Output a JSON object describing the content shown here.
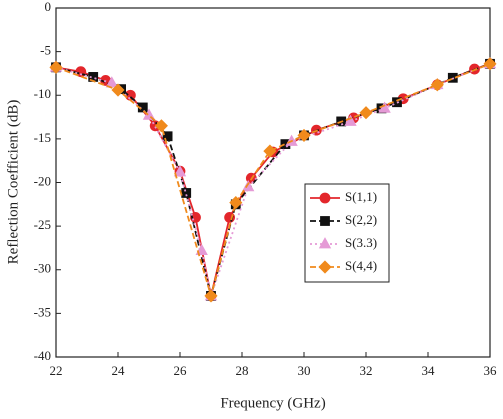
{
  "chart_data": {
    "type": "line",
    "x_label": "Frequency (GHz)",
    "y_label": "Reflection Coefficient (dB)",
    "xlim": [
      22,
      36
    ],
    "xticks": [
      22,
      24,
      26,
      28,
      30,
      32,
      34,
      36
    ],
    "ylim": [
      -40,
      0
    ],
    "yticks": [
      0,
      -5,
      -10,
      -15,
      -20,
      -25,
      -30,
      -35,
      -40
    ],
    "grid": false,
    "legend": "right",
    "series": [
      {
        "name": "S(1,1)",
        "color": "#e3262b",
        "marker": "circle",
        "dash": "solid",
        "x": [
          22,
          22.8,
          23.6,
          24.4,
          25.2,
          26.0,
          26.5,
          27.0,
          27.6,
          28.3,
          29.0,
          30.4,
          31.6,
          33.2,
          34.3,
          35.5,
          36
        ],
        "values": [
          -6.8,
          -7.3,
          -8.3,
          -10.0,
          -13.5,
          -18.7,
          -24.0,
          -33.0,
          -24.0,
          -19.5,
          -16.5,
          -14.0,
          -12.6,
          -10.4,
          -8.8,
          -7.0,
          -6.4
        ]
      },
      {
        "name": "S(2,2)",
        "color": "#111111",
        "marker": "square",
        "dash": "dashed",
        "x": [
          22,
          23.2,
          24.1,
          24.8,
          25.6,
          26.2,
          27.0,
          27.8,
          29.4,
          30.0,
          31.2,
          32.5,
          33.0,
          34.8,
          36
        ],
        "values": [
          -6.8,
          -7.9,
          -9.3,
          -11.4,
          -14.7,
          -21.2,
          -33.0,
          -22.5,
          -15.6,
          -14.6,
          -13.0,
          -11.5,
          -10.8,
          -8.0,
          -6.4
        ]
      },
      {
        "name": "S(3.3)",
        "color": "#e59ad6",
        "marker": "triangle",
        "dash": "dotted",
        "x": [
          22,
          23.8,
          25.0,
          26.0,
          26.7,
          27.0,
          28.2,
          29.6,
          31.5,
          32.6,
          34.3,
          36
        ],
        "values": [
          -6.8,
          -8.6,
          -12.3,
          -18.8,
          -27.8,
          -33.0,
          -20.5,
          -15.3,
          -13.0,
          -11.5,
          -8.8,
          -6.4
        ]
      },
      {
        "name": "S(4,4)",
        "color": "#f08a1c",
        "marker": "diamond",
        "dash": "dashed",
        "x": [
          22,
          24.0,
          25.4,
          27.0,
          27.8,
          28.9,
          30.0,
          32.0,
          34.3,
          36
        ],
        "values": [
          -6.8,
          -9.4,
          -13.5,
          -33.0,
          -22.3,
          -16.4,
          -14.6,
          -12.0,
          -8.8,
          -6.4
        ]
      }
    ]
  }
}
